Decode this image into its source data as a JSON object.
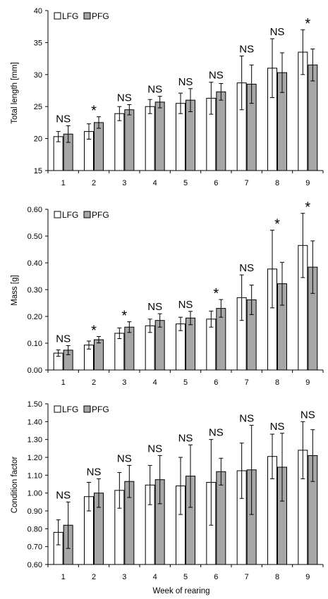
{
  "figure": {
    "xlabel_bottom": "Week of rearing"
  },
  "chart_data": [
    {
      "type": "bar",
      "ylabel": "Total length [mm]",
      "ylim": [
        15,
        40
      ],
      "yticks": [
        "15",
        "20",
        "25",
        "30",
        "35",
        "40"
      ],
      "categories": [
        "1",
        "2",
        "3",
        "4",
        "5",
        "6",
        "7",
        "8",
        "9"
      ],
      "legend": {
        "position": "top-left"
      },
      "series": [
        {
          "name": "LFG",
          "color": "#ffffff",
          "values": [
            20.3,
            21.1,
            23.9,
            25.0,
            25.5,
            26.3,
            28.7,
            31.0,
            33.5
          ],
          "errors": [
            0.8,
            1.2,
            1.1,
            1.1,
            1.6,
            2.5,
            4.2,
            4.6,
            3.5
          ]
        },
        {
          "name": "PFG",
          "color": "#a6a6a6",
          "values": [
            20.7,
            22.5,
            24.5,
            25.7,
            26.0,
            27.3,
            28.5,
            30.3,
            31.5
          ],
          "errors": [
            1.3,
            0.9,
            0.8,
            0.9,
            1.8,
            1.3,
            3.0,
            3.1,
            2.5
          ]
        }
      ],
      "significance": [
        "NS",
        "*",
        "NS",
        "NS",
        "NS",
        "NS",
        "NS",
        "NS",
        "*"
      ]
    },
    {
      "type": "bar",
      "ylabel": "Mass [g]",
      "ylim": [
        0,
        0.6
      ],
      "yticks": [
        "0.00",
        "0.10",
        "0.20",
        "0.30",
        "0.40",
        "0.50",
        "0.60"
      ],
      "categories": [
        "1",
        "2",
        "3",
        "4",
        "5",
        "6",
        "7",
        "8",
        "9"
      ],
      "legend": {
        "position": "top-left"
      },
      "series": [
        {
          "name": "LFG",
          "color": "#ffffff",
          "values": [
            0.063,
            0.093,
            0.137,
            0.165,
            0.172,
            0.19,
            0.27,
            0.377,
            0.465
          ],
          "errors": [
            0.012,
            0.015,
            0.02,
            0.025,
            0.025,
            0.03,
            0.085,
            0.145,
            0.12
          ]
        },
        {
          "name": "PFG",
          "color": "#a6a6a6",
          "values": [
            0.074,
            0.113,
            0.16,
            0.185,
            0.194,
            0.23,
            0.262,
            0.322,
            0.384
          ],
          "errors": [
            0.017,
            0.012,
            0.02,
            0.025,
            0.025,
            0.033,
            0.055,
            0.08,
            0.098
          ]
        }
      ],
      "significance": [
        "NS",
        "*",
        "*",
        "NS",
        "NS",
        "*",
        "NS",
        "*",
        "*"
      ]
    },
    {
      "type": "bar",
      "ylabel": "Condition factor",
      "xlabel": "Week of rearing",
      "ylim": [
        0.6,
        1.5
      ],
      "yticks": [
        "0.60",
        "0.70",
        "0.80",
        "0.90",
        "1.00",
        "1.10",
        "1.20",
        "1.30",
        "1.40",
        "1.50"
      ],
      "categories": [
        "1",
        "2",
        "3",
        "4",
        "5",
        "6",
        "7",
        "8",
        "9"
      ],
      "legend": {
        "position": "top-left"
      },
      "series": [
        {
          "name": "LFG",
          "color": "#ffffff",
          "values": [
            0.78,
            0.98,
            1.015,
            1.045,
            1.04,
            1.06,
            1.125,
            1.205,
            1.24
          ],
          "errors": [
            0.07,
            0.08,
            0.1,
            0.11,
            0.16,
            0.24,
            0.155,
            0.125,
            0.16
          ]
        },
        {
          "name": "PFG",
          "color": "#a6a6a6",
          "values": [
            0.82,
            1.0,
            1.065,
            1.075,
            1.095,
            1.12,
            1.13,
            1.145,
            1.21
          ],
          "errors": [
            0.13,
            0.08,
            0.09,
            0.135,
            0.175,
            0.075,
            0.25,
            0.19,
            0.145
          ]
        }
      ],
      "significance": [
        "NS",
        "NS",
        "NS",
        "NS",
        "NS",
        "NS",
        "NS",
        "NS",
        "NS"
      ]
    }
  ]
}
